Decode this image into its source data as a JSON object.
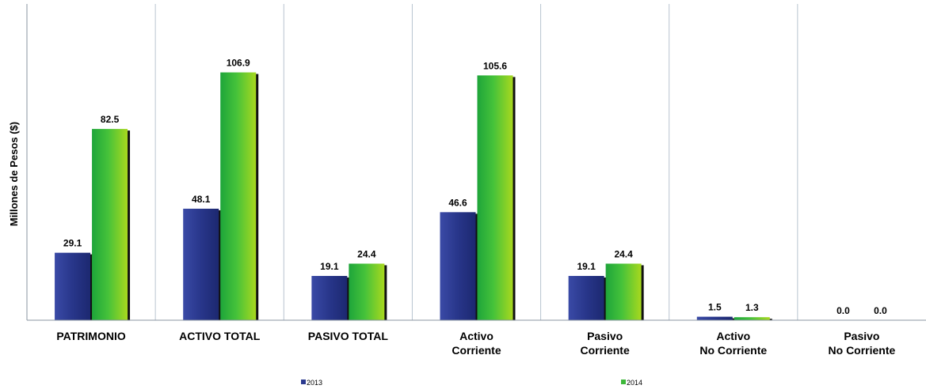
{
  "chart_data": {
    "type": "bar",
    "title": "",
    "xlabel": "",
    "ylabel": "Millones de Pesos ($)",
    "ylim": [
      0,
      120
    ],
    "grid": false,
    "legend_position": "bottom",
    "categories": [
      [
        "PATRIMONIO"
      ],
      [
        "ACTIVO TOTAL"
      ],
      [
        "PASIVO TOTAL"
      ],
      [
        "Activo",
        "Corriente"
      ],
      [
        "Pasivo",
        "Corriente"
      ],
      [
        "Activo",
        "No Corriente"
      ],
      [
        "Pasivo",
        "No Corriente"
      ]
    ],
    "series": [
      {
        "name": "2013",
        "color": "#2B3A8F",
        "values": [
          29.1,
          48.1,
          19.1,
          46.6,
          19.1,
          1.5,
          0.0
        ],
        "labels": [
          "29.1",
          "48.1",
          "19.1",
          "46.6",
          "19.1",
          "1.5",
          "0.0"
        ]
      },
      {
        "name": "2014",
        "color": "#3DB83A",
        "values": [
          82.5,
          106.9,
          24.4,
          105.6,
          24.4,
          1.3,
          0.0
        ],
        "labels": [
          "82.5",
          "106.9",
          "24.4",
          "105.6",
          "24.4",
          "1.3",
          "0.0"
        ]
      }
    ]
  }
}
